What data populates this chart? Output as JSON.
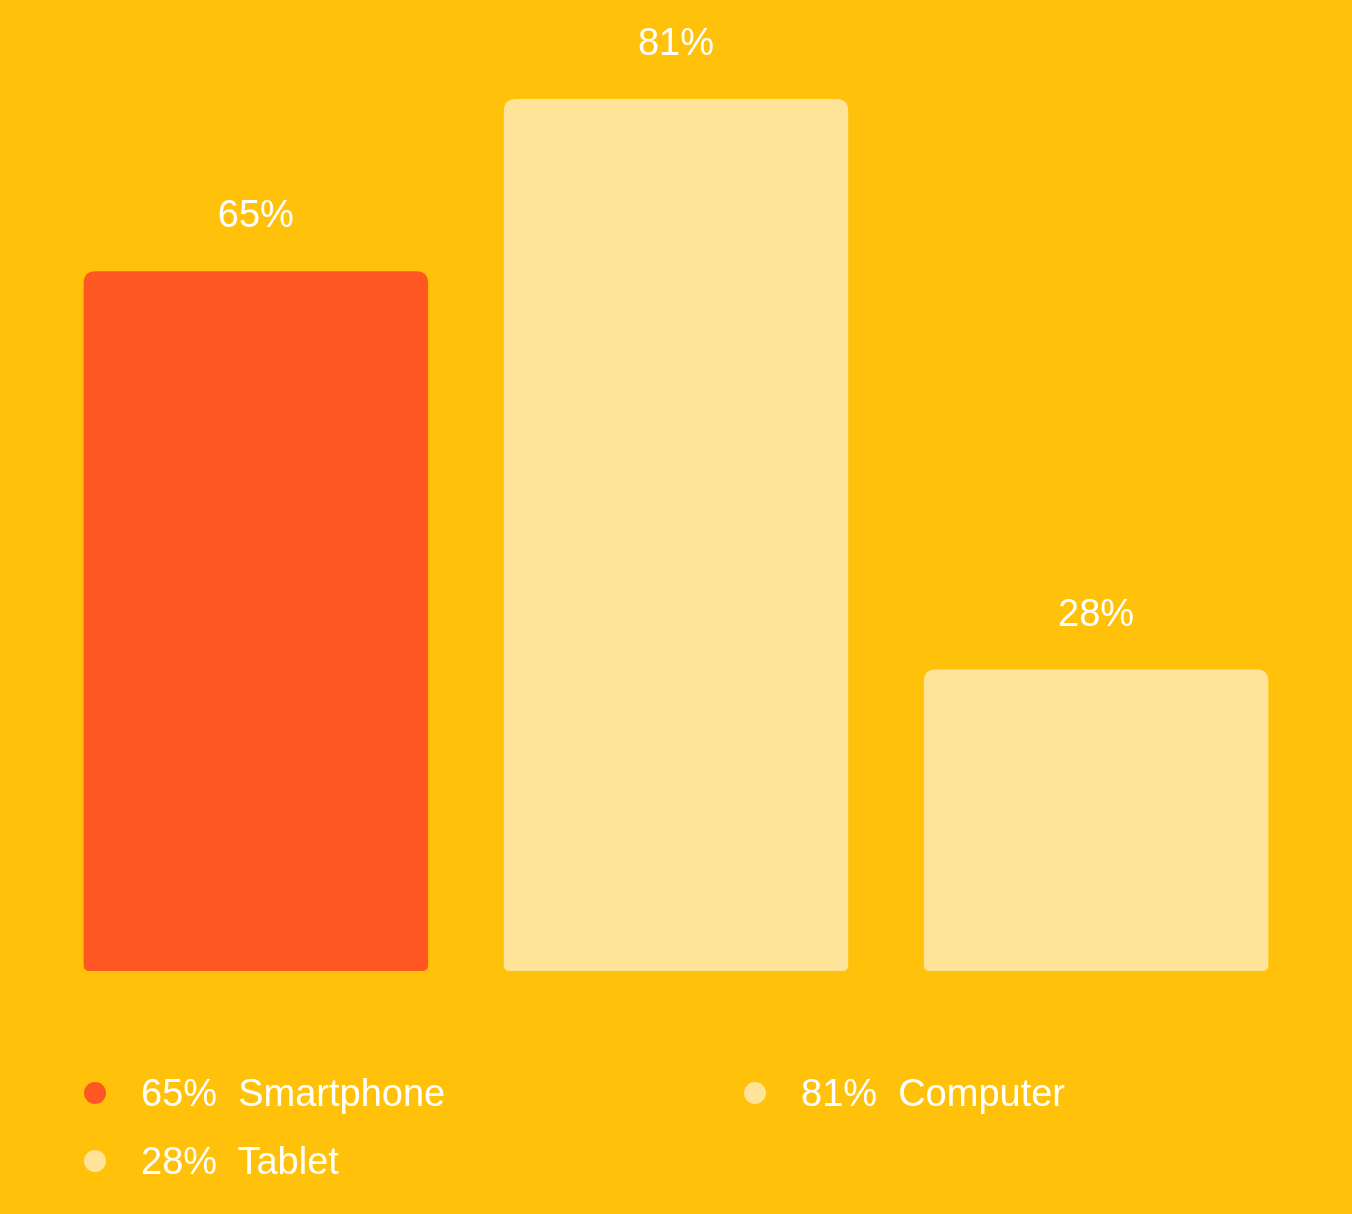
{
  "chart_data": {
    "type": "bar",
    "stacked": true,
    "categories": [
      null,
      null,
      null
    ],
    "legend": "bottom",
    "series": [
      {
        "name": "65%  Smartphone",
        "color": "#ff5722",
        "values": [
          65,
          null,
          null
        ],
        "value_labels": [
          "65%",
          null,
          null
        ]
      },
      {
        "name": "81%  Computer",
        "color": "#ffe399",
        "values": [
          null,
          81,
          null
        ],
        "value_labels": [
          null,
          "81%",
          null
        ]
      },
      {
        "name": "28%  Tablet",
        "color": "#ffe399",
        "values": [
          null,
          null,
          28
        ],
        "value_labels": [
          null,
          null,
          "28%"
        ]
      }
    ]
  }
}
